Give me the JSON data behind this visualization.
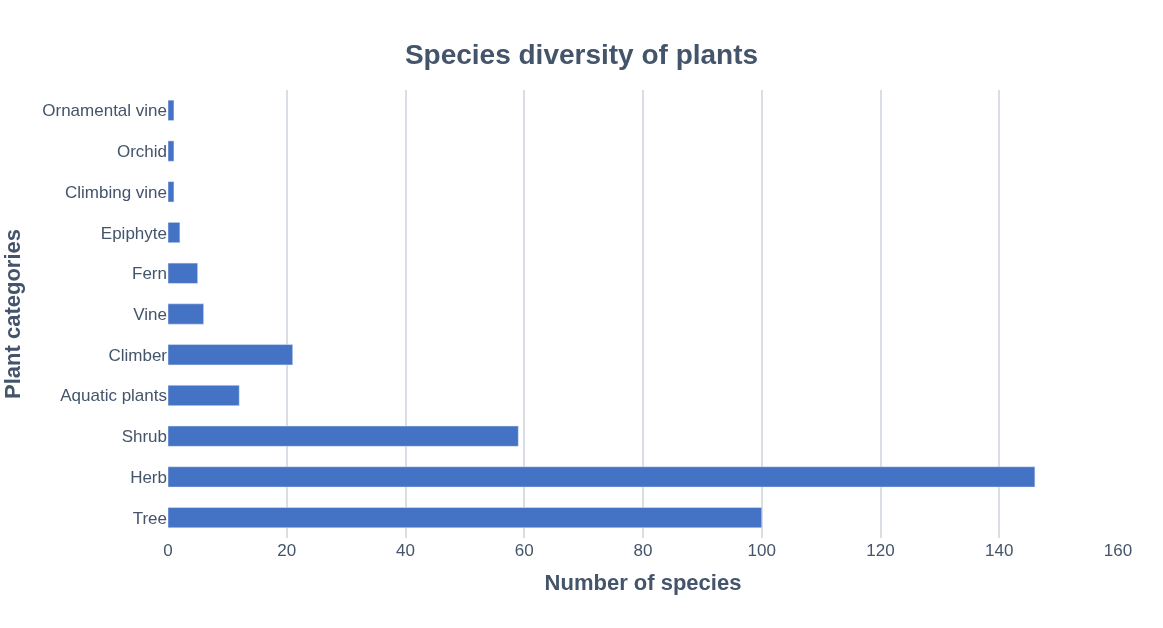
{
  "chart_data": {
    "type": "bar",
    "orientation": "horizontal",
    "title": "Species diversity of plants",
    "xlabel": "Number of species",
    "ylabel": "Plant categories",
    "categories": [
      "Ornamental vine",
      "Orchid",
      "Climbing vine",
      "Epiphyte",
      "Fern",
      "Vine",
      "Climber",
      "Aquatic plants",
      "Shrub",
      "Herb",
      "Tree"
    ],
    "values": [
      1,
      1,
      1,
      2,
      5,
      6,
      21,
      12,
      59,
      146,
      100
    ],
    "color": "#4472c4",
    "xlim": [
      0,
      160
    ],
    "xticks": [
      0,
      20,
      40,
      60,
      80,
      100,
      120,
      140,
      160
    ],
    "grid": "x"
  }
}
